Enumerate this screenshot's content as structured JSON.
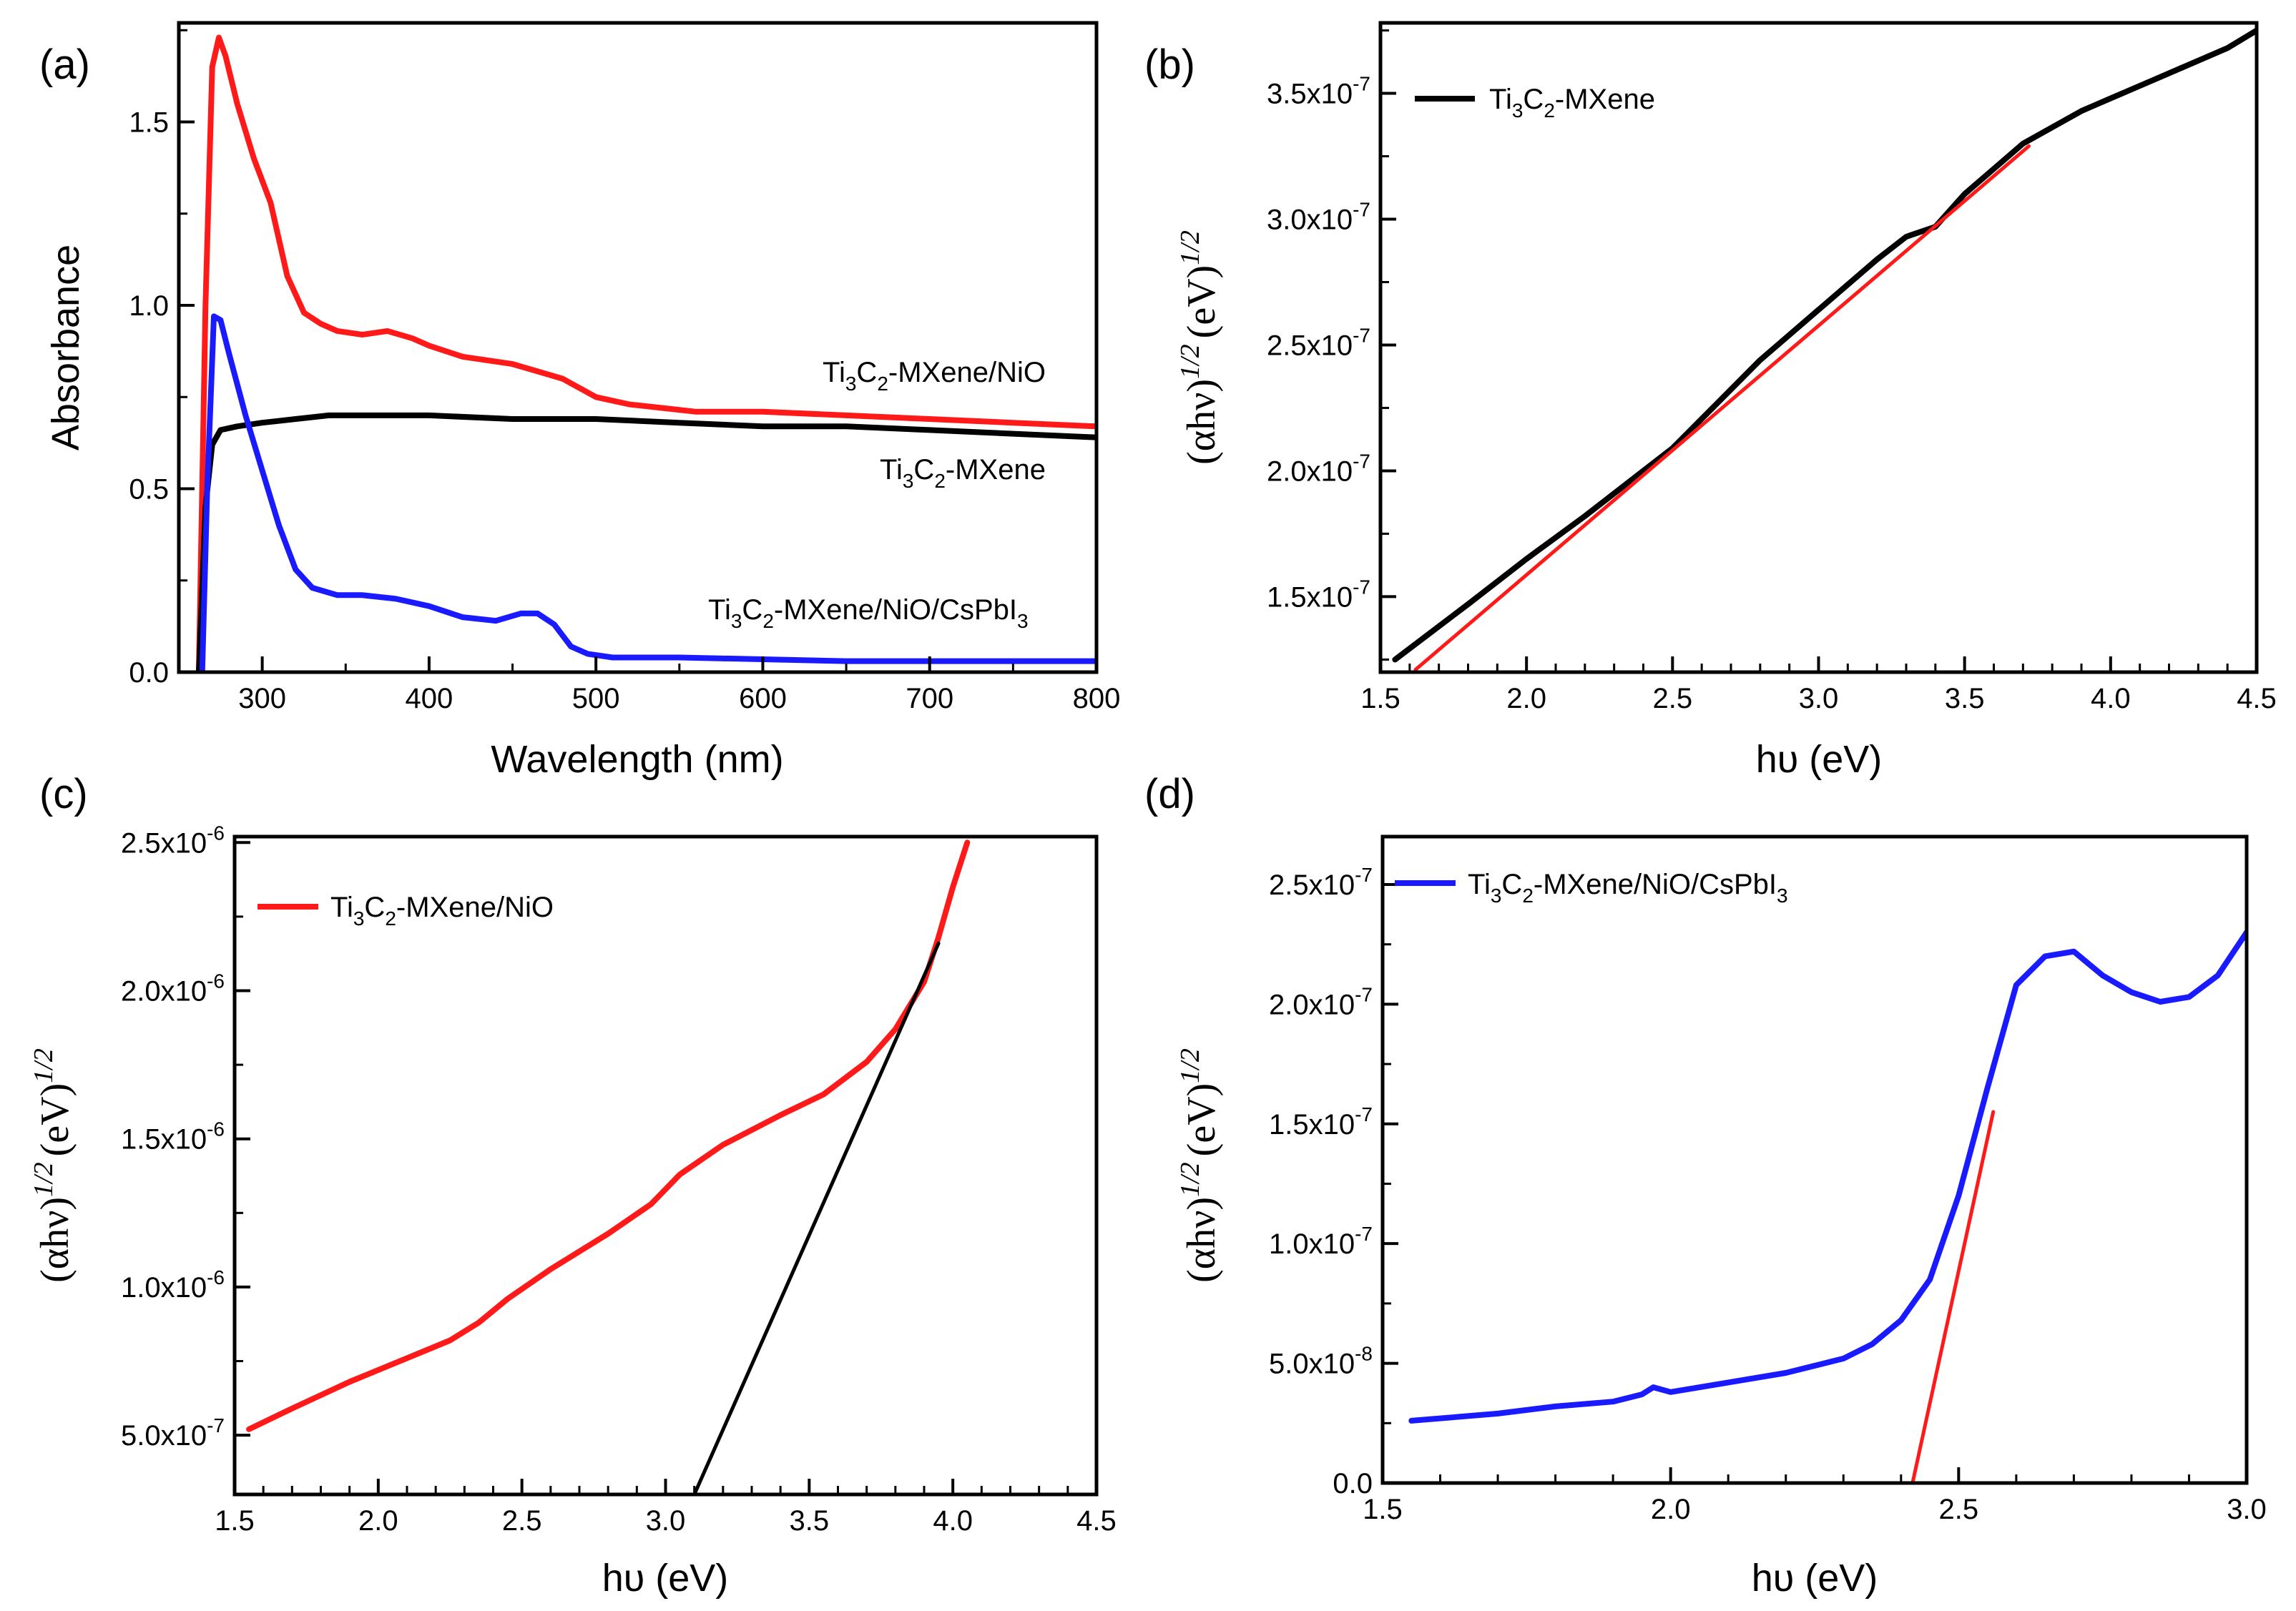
{
  "panels": [
    {
      "id": "a",
      "label": "(a)",
      "xlabel": "Wavelength (nm)",
      "ylabel": "Absorbance",
      "xticks": [
        "300",
        "400",
        "500",
        "600",
        "700",
        "800"
      ],
      "yticks": [
        "0.0",
        "0.5",
        "1.0",
        "1.5"
      ],
      "annotations": [
        {
          "main": "Ti",
          "s1": "3",
          "m2": "C",
          "s2": "2",
          "tail": "-MXene/NiO"
        },
        {
          "main": "Ti",
          "s1": "3",
          "m2": "C",
          "s2": "2",
          "tail": "-MXene"
        },
        {
          "main": "Ti",
          "s1": "3",
          "m2": "C",
          "s2": "2",
          "tail": "-MXene/NiO/CsPbI",
          "s3": "3"
        }
      ]
    },
    {
      "id": "b",
      "label": "(b)",
      "xlabel": "hυ (eV)",
      "ylabel_main": "(αhν)",
      "ylabel_sup1": "1/2",
      "ylabel_mid": "(eV)",
      "ylabel_sup2": "1/2",
      "xticks": [
        "1.5",
        "2.0",
        "2.5",
        "3.0",
        "3.5",
        "4.0",
        "4.5"
      ],
      "yticks": [
        {
          "m": "1.5x10",
          "e": "-7"
        },
        {
          "m": "2.0x10",
          "e": "-7"
        },
        {
          "m": "2.5x10",
          "e": "-7"
        },
        {
          "m": "3.0x10",
          "e": "-7"
        },
        {
          "m": "3.5x10",
          "e": "-7"
        }
      ],
      "legend": {
        "main": "Ti",
        "s1": "3",
        "m2": "C",
        "s2": "2",
        "tail": "-MXene"
      }
    },
    {
      "id": "c",
      "label": "(c)",
      "xlabel": "hυ (eV)",
      "ylabel_main": "(αhν)",
      "ylabel_sup1": "1/2",
      "ylabel_mid": "(eV)",
      "ylabel_sup2": "1/2",
      "xticks": [
        "1.5",
        "2.0",
        "2.5",
        "3.0",
        "3.5",
        "4.0",
        "4.5"
      ],
      "yticks": [
        {
          "m": "5.0x10",
          "e": "-7"
        },
        {
          "m": "1.0x10",
          "e": "-6"
        },
        {
          "m": "1.5x10",
          "e": "-6"
        },
        {
          "m": "2.0x10",
          "e": "-6"
        },
        {
          "m": "2.5x10",
          "e": "-6"
        }
      ],
      "legend": {
        "main": "Ti",
        "s1": "3",
        "m2": "C",
        "s2": "2",
        "tail": "-MXene/NiO"
      }
    },
    {
      "id": "d",
      "label": "(d)",
      "xlabel": "hυ (eV)",
      "ylabel_main": "(αhν)",
      "ylabel_sup1": "1/2",
      "ylabel_mid": "(eV)",
      "ylabel_sup2": "1/2",
      "xticks": [
        "1.5",
        "2.0",
        "2.5",
        "3.0"
      ],
      "yticks": [
        {
          "m": "0.0",
          "e": ""
        },
        {
          "m": "5.0x10",
          "e": "-8"
        },
        {
          "m": "1.0x10",
          "e": "-7"
        },
        {
          "m": "1.5x10",
          "e": "-7"
        },
        {
          "m": "2.0x10",
          "e": "-7"
        },
        {
          "m": "2.5x10",
          "e": "-7"
        }
      ],
      "legend": {
        "main": "Ti",
        "s1": "3",
        "m2": "C",
        "s2": "2",
        "tail": "-MXene/NiO/CsPbI",
        "s3": "3"
      }
    }
  ],
  "chart_data": [
    {
      "type": "line",
      "panel": "a",
      "xlabel": "Wavelength (nm)",
      "ylabel": "Absorbance",
      "xlim": [
        250,
        800
      ],
      "ylim": [
        0,
        1.77
      ],
      "series": [
        {
          "name": "Ti3C2-MXene/NiO",
          "color": "#ff1a1a",
          "x": [
            262,
            266,
            270,
            274,
            278,
            285,
            295,
            305,
            315,
            325,
            335,
            345,
            360,
            375,
            390,
            400,
            420,
            450,
            480,
            500,
            520,
            540,
            560,
            600,
            650,
            700,
            750,
            800
          ],
          "y": [
            0.0,
            1.0,
            1.65,
            1.73,
            1.68,
            1.55,
            1.4,
            1.28,
            1.08,
            0.98,
            0.95,
            0.93,
            0.92,
            0.93,
            0.91,
            0.89,
            0.86,
            0.84,
            0.8,
            0.75,
            0.73,
            0.72,
            0.71,
            0.71,
            0.7,
            0.69,
            0.68,
            0.67
          ]
        },
        {
          "name": "Ti3C2-MXene",
          "color": "#000000",
          "x": [
            262,
            266,
            270,
            275,
            285,
            300,
            320,
            340,
            360,
            380,
            400,
            450,
            500,
            550,
            600,
            650,
            700,
            750,
            800
          ],
          "y": [
            0.0,
            0.45,
            0.62,
            0.66,
            0.67,
            0.68,
            0.69,
            0.7,
            0.7,
            0.7,
            0.7,
            0.69,
            0.69,
            0.68,
            0.67,
            0.67,
            0.66,
            0.65,
            0.64
          ]
        },
        {
          "name": "Ti3C2-MXene/NiO/CsPbI3",
          "color": "#1a1aff",
          "x": [
            264,
            267,
            271,
            275,
            280,
            290,
            300,
            310,
            320,
            330,
            345,
            360,
            380,
            400,
            420,
            440,
            455,
            465,
            475,
            485,
            495,
            510,
            550,
            600,
            650,
            700,
            800
          ],
          "y": [
            0.0,
            0.5,
            0.97,
            0.96,
            0.87,
            0.7,
            0.55,
            0.4,
            0.28,
            0.23,
            0.21,
            0.21,
            0.2,
            0.18,
            0.15,
            0.14,
            0.16,
            0.16,
            0.13,
            0.07,
            0.05,
            0.04,
            0.04,
            0.035,
            0.03,
            0.03,
            0.03
          ]
        }
      ]
    },
    {
      "type": "line",
      "panel": "b",
      "xlabel": "hυ (eV)",
      "ylabel": "(αhν)^1/2 (eV)^1/2",
      "xlim": [
        1.5,
        4.5
      ],
      "ylim": [
        1.2e-07,
        3.78e-07
      ],
      "series": [
        {
          "name": "Ti3C2-MXene",
          "color": "#000000",
          "x": [
            1.55,
            1.8,
            2.0,
            2.2,
            2.5,
            2.8,
            3.0,
            3.2,
            3.3,
            3.4,
            3.5,
            3.7,
            3.9,
            4.0,
            4.2,
            4.4,
            4.5
          ],
          "y": [
            1.25e-07,
            1.47e-07,
            1.65e-07,
            1.82e-07,
            2.09e-07,
            2.44e-07,
            2.64e-07,
            2.84e-07,
            2.93e-07,
            2.97e-07,
            3.1e-07,
            3.3e-07,
            3.43e-07,
            3.48e-07,
            3.58e-07,
            3.68e-07,
            3.75e-07
          ]
        },
        {
          "name": "fit",
          "color": "#ff1a1a",
          "x": [
            1.62,
            3.72
          ],
          "y": [
            1.21e-07,
            3.29e-07
          ]
        }
      ]
    },
    {
      "type": "line",
      "panel": "c",
      "xlabel": "hυ (eV)",
      "ylabel": "(αhν)^1/2 (eV)^1/2",
      "xlim": [
        1.5,
        4.5
      ],
      "ylim": [
        3e-07,
        2.52e-06
      ],
      "series": [
        {
          "name": "Ti3C2-MXene/NiO",
          "color": "#ff1a1a",
          "x": [
            1.55,
            1.7,
            1.9,
            2.1,
            2.25,
            2.35,
            2.45,
            2.6,
            2.8,
            2.95,
            3.05,
            3.2,
            3.3,
            3.4,
            3.55,
            3.7,
            3.8,
            3.9,
            3.95,
            4.0,
            4.05
          ],
          "y": [
            5.2e-07,
            5.9e-07,
            6.8e-07,
            7.6e-07,
            8.2e-07,
            8.8e-07,
            9.6e-07,
            1.06e-06,
            1.18e-06,
            1.28e-06,
            1.38e-06,
            1.48e-06,
            1.53e-06,
            1.58e-06,
            1.65e-06,
            1.76e-06,
            1.87e-06,
            2.03e-06,
            2.18e-06,
            2.35e-06,
            2.5e-06
          ]
        },
        {
          "name": "fit",
          "color": "#000000",
          "x": [
            3.1,
            3.95
          ],
          "y": [
            3e-07,
            2.16e-06
          ]
        }
      ]
    },
    {
      "type": "line",
      "panel": "d",
      "xlabel": "hυ (eV)",
      "ylabel": "(αhν)^1/2 (eV)^1/2",
      "xlim": [
        1.5,
        3.0
      ],
      "ylim": [
        0,
        2.7e-07
      ],
      "series": [
        {
          "name": "Ti3C2-MXene/NiO/CsPbI3",
          "color": "#1a1aff",
          "x": [
            1.55,
            1.7,
            1.8,
            1.9,
            1.95,
            1.97,
            2.0,
            2.1,
            2.2,
            2.3,
            2.35,
            2.4,
            2.45,
            2.5,
            2.55,
            2.6,
            2.65,
            2.7,
            2.75,
            2.8,
            2.85,
            2.9,
            2.95,
            3.0
          ],
          "y": [
            2.6e-08,
            2.9e-08,
            3.2e-08,
            3.4e-08,
            3.7e-08,
            4e-08,
            3.8e-08,
            4.2e-08,
            4.6e-08,
            5.2e-08,
            5.8e-08,
            6.8e-08,
            8.5e-08,
            1.2e-07,
            1.65e-07,
            2.08e-07,
            2.2e-07,
            2.22e-07,
            2.12e-07,
            2.05e-07,
            2.01e-07,
            2.03e-07,
            2.12e-07,
            2.3e-07
          ]
        },
        {
          "name": "fit",
          "color": "#ff1a1a",
          "x": [
            2.42,
            2.56
          ],
          "y": [
            0,
            1.55e-07
          ]
        }
      ]
    }
  ]
}
